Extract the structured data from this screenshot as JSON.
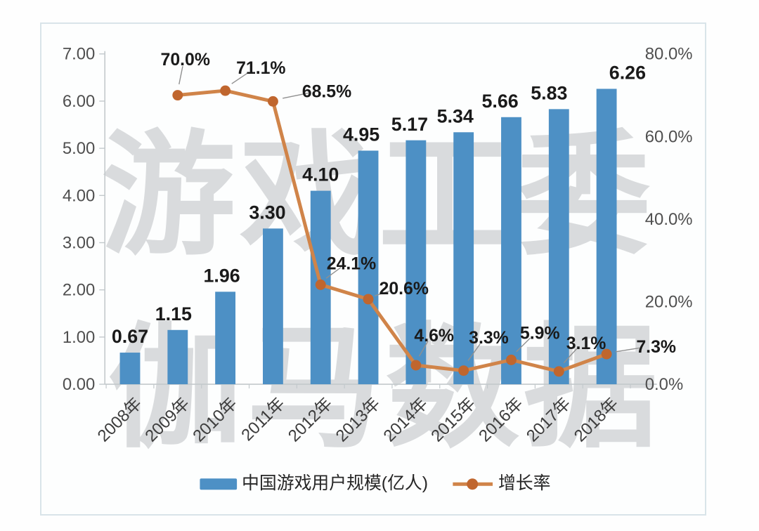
{
  "chart_data": {
    "type": "bar+line",
    "title": "",
    "categories": [
      "2008年",
      "2009年",
      "2010年",
      "2011年",
      "2012年",
      "2013年",
      "2014年",
      "2015年",
      "2016年",
      "2017年",
      "2018年"
    ],
    "series": [
      {
        "name": "中国游戏用户规模(亿人)",
        "chart_type": "bar",
        "axis": "left",
        "color": "#4d90c5",
        "values": [
          0.67,
          1.15,
          1.96,
          3.3,
          4.1,
          4.95,
          5.17,
          5.34,
          5.66,
          5.83,
          6.26
        ],
        "data_labels": [
          "0.67",
          "1.15",
          "1.96",
          "3.30",
          "4.10",
          "4.95",
          "5.17",
          "5.34",
          "5.66",
          "5.83",
          "6.26"
        ]
      },
      {
        "name": "增长率",
        "chart_type": "line",
        "axis": "right",
        "color": "#d08449",
        "marker_color": "#c0662e",
        "values": [
          null,
          70.0,
          71.1,
          68.5,
          24.1,
          20.6,
          4.6,
          3.3,
          5.9,
          3.1,
          7.3
        ],
        "data_labels": [
          "",
          "70.0%",
          "71.1%",
          "68.5%",
          "24.1%",
          "20.6%",
          "4.6%",
          "3.3%",
          "5.9%",
          "3.1%",
          "7.3%"
        ]
      }
    ],
    "left_axis": {
      "min": 0,
      "max": 7,
      "tick_labels": [
        "7.00",
        "6.00",
        "5.00",
        "4.00",
        "3.00",
        "2.00",
        "1.00",
        "0.00"
      ]
    },
    "right_axis": {
      "min": 0,
      "max": 80,
      "tick_labels": [
        "80.0%",
        "60.0%",
        "40.0%",
        "20.0%",
        "0.0%"
      ]
    },
    "grid": false,
    "legend": {
      "position": "bottom",
      "items": [
        {
          "swatch": "bar",
          "label": "中国游戏用户规模(亿人)"
        },
        {
          "swatch": "line",
          "label": "增长率"
        }
      ]
    },
    "watermark": {
      "color": "#d9dbdd",
      "rows": [
        "游戏工委",
        "伽马数据"
      ]
    },
    "colors": {
      "axis_line": "#c3c9cc",
      "tick_text": "#4f4f4f",
      "label_text": "#1a1a1a",
      "leader": "#909090",
      "year_text": "#3d3d3d",
      "legend_text": "#262626"
    }
  }
}
